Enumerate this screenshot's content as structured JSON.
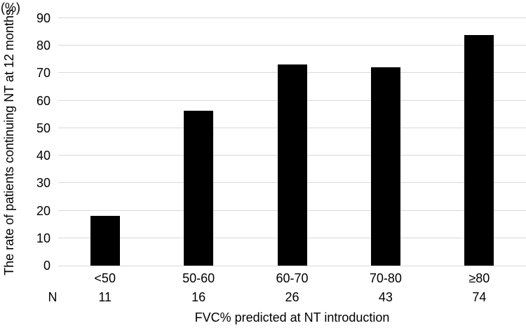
{
  "chart": {
    "y_unit_label": "(%)",
    "n_row_label": "N"
  },
  "chart_data": {
    "type": "bar",
    "title": "",
    "categories": [
      "<50",
      "50-60",
      "60-70",
      "70-80",
      "≥80"
    ],
    "values": [
      18.2,
      56.3,
      73.1,
      72.1,
      83.8
    ],
    "n_values": [
      11,
      16,
      26,
      43,
      74
    ],
    "xlabel": "FVC% predicted at NT introduction",
    "ylabel": "The rate of patients continuing NT at 12 months",
    "y_unit": "%",
    "ylim": [
      0,
      90
    ],
    "y_ticks": [
      0,
      10,
      20,
      30,
      40,
      50,
      60,
      70,
      80,
      90
    ],
    "grid": true,
    "legend_position": "none",
    "bar_color": "#000000",
    "gridline_color": "#d9d9d9",
    "axis_line_color": "#d9d9d9",
    "text_color": "#000000"
  }
}
